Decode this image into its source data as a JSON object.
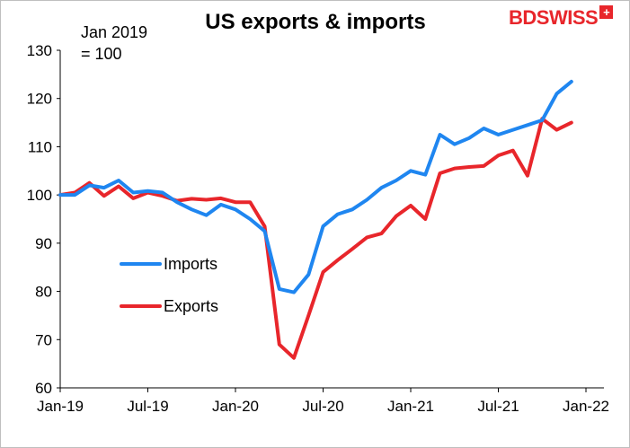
{
  "chart_data": {
    "type": "line",
    "title": "US exports & imports",
    "annotation": [
      "Jan 2019",
      "= 100"
    ],
    "ylim": [
      60,
      130
    ],
    "yticks": [
      60,
      70,
      80,
      90,
      100,
      110,
      120,
      130
    ],
    "x_tick_labels": [
      "Jan-19",
      "Jul-19",
      "Jan-20",
      "Jul-20",
      "Jan-21",
      "Jul-21",
      "Jan-22"
    ],
    "x": [
      "Jan-19",
      "Feb-19",
      "Mar-19",
      "Apr-19",
      "May-19",
      "Jun-19",
      "Jul-19",
      "Aug-19",
      "Sep-19",
      "Oct-19",
      "Nov-19",
      "Dec-19",
      "Jan-20",
      "Feb-20",
      "Mar-20",
      "Apr-20",
      "May-20",
      "Jun-20",
      "Jul-20",
      "Aug-20",
      "Sep-20",
      "Oct-20",
      "Nov-20",
      "Dec-20",
      "Jan-21",
      "Feb-21",
      "Mar-21",
      "Apr-21",
      "May-21",
      "Jun-21",
      "Jul-21",
      "Aug-21",
      "Sep-21",
      "Oct-21",
      "Nov-21",
      "Dec-21"
    ],
    "legend_position": "left-middle",
    "grid": false,
    "series": [
      {
        "name": "Imports",
        "color": "#1f86f0",
        "values": [
          100,
          100,
          102,
          101.5,
          103,
          100.5,
          100.8,
          100.5,
          98.5,
          97,
          95.8,
          98,
          97,
          95,
          92.5,
          80.5,
          79.8,
          83.5,
          93.5,
          96,
          97,
          99,
          101.5,
          103,
          105,
          104.2,
          112.5,
          110.5,
          111.8,
          113.8,
          112.5,
          113.5,
          114.5,
          115.5,
          121,
          123.5
        ]
      },
      {
        "name": "Exports",
        "color": "#e8262b",
        "values": [
          100,
          100.5,
          102.5,
          99.8,
          101.8,
          99.3,
          100.5,
          99.8,
          98.8,
          99.2,
          99,
          99.3,
          98.5,
          98.5,
          93.5,
          69,
          66.2,
          75,
          84,
          86.5,
          88.8,
          91.2,
          92,
          95.6,
          97.8,
          95,
          104.5,
          105.5,
          105.8,
          106,
          108.2,
          109.2,
          104,
          115.8,
          113.5,
          115
        ]
      }
    ]
  },
  "brand": {
    "name_part1": "BD",
    "name_part2": "SWISS",
    "symbol": "+"
  }
}
